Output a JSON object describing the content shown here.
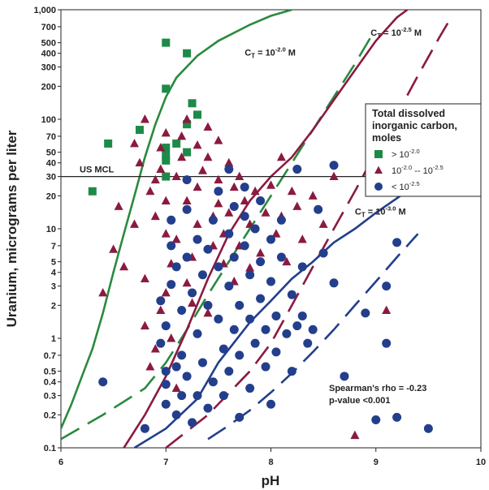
{
  "chart_data": {
    "type": "scatter",
    "xlabel": "pH",
    "ylabel": "Uranium, micrograms per liter",
    "xlim": [
      6,
      10
    ],
    "ylim": [
      0.1,
      1000
    ],
    "yscale": "log",
    "x_ticks": [
      "6",
      "7",
      "8",
      "9",
      "10"
    ],
    "y_ticks": [
      {
        "v": 1000,
        "label": "1,000"
      },
      {
        "v": 700,
        "label": "700"
      },
      {
        "v": 500,
        "label": "500"
      },
      {
        "v": 400,
        "label": "400"
      },
      {
        "v": 300,
        "label": "300"
      },
      {
        "v": 200,
        "label": "200"
      },
      {
        "v": 100,
        "label": "100"
      },
      {
        "v": 70,
        "label": "70"
      },
      {
        "v": 50,
        "label": "50"
      },
      {
        "v": 40,
        "label": "40"
      },
      {
        "v": 30,
        "label": "30"
      },
      {
        "v": 20,
        "label": "20"
      },
      {
        "v": 10,
        "label": "10"
      },
      {
        "v": 7,
        "label": "7"
      },
      {
        "v": 5,
        "label": "5"
      },
      {
        "v": 4,
        "label": "4"
      },
      {
        "v": 3,
        "label": "3"
      },
      {
        "v": 2,
        "label": "2"
      },
      {
        "v": 1,
        "label": "1"
      },
      {
        "v": 0.7,
        "label": "0.7"
      },
      {
        "v": 0.5,
        "label": "0.5"
      },
      {
        "v": 0.4,
        "label": "0.4"
      },
      {
        "v": 0.3,
        "label": "0.3"
      },
      {
        "v": 0.2,
        "label": "0.2"
      },
      {
        "v": 0.1,
        "label": "0.1"
      }
    ],
    "mcl": {
      "value": 30,
      "label": "US MCL"
    },
    "legend": {
      "title_lines": [
        "Total dissolved",
        "inorganic carbon,",
        "moles"
      ],
      "entries": [
        {
          "marker": "square",
          "color": "#1e8a4a",
          "text": "> 10",
          "sup": "-2.0"
        },
        {
          "marker": "triangle",
          "color": "#8b1a3f",
          "text": "10",
          "sup": "-2.0",
          "text2": " -- 10",
          "sup2": "-2.5"
        },
        {
          "marker": "circle",
          "color": "#233f8c",
          "text": "< 10",
          "sup": "-2.5"
        }
      ]
    },
    "curve_labels": [
      {
        "base": "C",
        "sub": "T",
        "eq": " = 10",
        "sup": "-2.0",
        "unit": " M",
        "x": 7.75,
        "y": 380
      },
      {
        "base": "C",
        "sub": "T",
        "eq": " = 10",
        "sup": "-2.5",
        "unit": " M",
        "x": 8.95,
        "y": 580
      },
      {
        "base": "C",
        "sub": "T",
        "eq": " = 10",
        "sup": "-3.0",
        "unit": " M",
        "x": 8.8,
        "y": 13.5
      }
    ],
    "stats": {
      "line1": "Spearman's rho = -0.23",
      "line2": "p-value <0.001"
    },
    "curves": [
      {
        "name": "green-solid",
        "color": "#2a8a3e",
        "dash": false,
        "points": [
          [
            6.0,
            0.15
          ],
          [
            6.1,
            0.25
          ],
          [
            6.2,
            0.45
          ],
          [
            6.3,
            0.8
          ],
          [
            6.4,
            1.7
          ],
          [
            6.5,
            4
          ],
          [
            6.6,
            9
          ],
          [
            6.7,
            20
          ],
          [
            6.8,
            45
          ],
          [
            6.9,
            90
          ],
          [
            7.0,
            160
          ],
          [
            7.1,
            240
          ],
          [
            7.3,
            380
          ],
          [
            7.5,
            520
          ],
          [
            7.8,
            730
          ],
          [
            8.0,
            880
          ],
          [
            8.2,
            1000
          ]
        ]
      },
      {
        "name": "green-dashed",
        "color": "#2a8a3e",
        "dash": true,
        "points": [
          [
            6.0,
            0.12
          ],
          [
            6.4,
            0.2
          ],
          [
            6.8,
            0.35
          ],
          [
            7.0,
            0.6
          ],
          [
            7.2,
            1.2
          ],
          [
            7.4,
            2.5
          ],
          [
            7.6,
            5
          ],
          [
            7.8,
            10
          ],
          [
            8.0,
            20
          ],
          [
            8.2,
            40
          ],
          [
            8.4,
            80
          ],
          [
            8.6,
            160
          ],
          [
            8.8,
            320
          ],
          [
            8.95,
            560
          ]
        ]
      },
      {
        "name": "red-solid",
        "color": "#8b1a3f",
        "dash": false,
        "points": [
          [
            6.6,
            0.1
          ],
          [
            6.8,
            0.2
          ],
          [
            7.0,
            0.45
          ],
          [
            7.2,
            1.2
          ],
          [
            7.4,
            3.5
          ],
          [
            7.6,
            9
          ],
          [
            7.8,
            18
          ],
          [
            8.0,
            30
          ],
          [
            8.2,
            45
          ],
          [
            8.4,
            80
          ],
          [
            8.6,
            150
          ],
          [
            8.8,
            280
          ],
          [
            9.0,
            520
          ],
          [
            9.2,
            850
          ],
          [
            9.3,
            1000
          ]
        ]
      },
      {
        "name": "red-dashed",
        "color": "#8b1a3f",
        "dash": true,
        "points": [
          [
            7.0,
            0.1
          ],
          [
            7.4,
            0.2
          ],
          [
            7.8,
            0.5
          ],
          [
            8.0,
            0.9
          ],
          [
            8.2,
            2
          ],
          [
            8.4,
            4.5
          ],
          [
            8.6,
            10
          ],
          [
            8.8,
            22
          ],
          [
            9.0,
            50
          ],
          [
            9.2,
            110
          ],
          [
            9.4,
            250
          ],
          [
            9.6,
            550
          ],
          [
            9.7,
            800
          ]
        ]
      },
      {
        "name": "blue-solid",
        "color": "#233f8c",
        "dash": false,
        "points": [
          [
            6.7,
            0.1
          ],
          [
            7.0,
            0.15
          ],
          [
            7.3,
            0.28
          ],
          [
            7.5,
            0.6
          ],
          [
            7.8,
            1.4
          ],
          [
            8.0,
            2.2
          ],
          [
            8.2,
            3.5
          ],
          [
            8.4,
            5
          ],
          [
            8.6,
            7.5
          ],
          [
            8.8,
            10
          ],
          [
            9.0,
            14
          ],
          [
            9.2,
            19
          ],
          [
            9.4,
            26
          ],
          [
            9.6,
            33
          ]
        ]
      },
      {
        "name": "blue-dashed",
        "color": "#233f8c",
        "dash": true,
        "points": [
          [
            7.4,
            0.12
          ],
          [
            7.6,
            0.16
          ],
          [
            7.8,
            0.22
          ],
          [
            8.0,
            0.32
          ],
          [
            8.2,
            0.48
          ],
          [
            8.4,
            0.75
          ],
          [
            8.6,
            1.2
          ],
          [
            8.8,
            2
          ],
          [
            9.0,
            3.3
          ],
          [
            9.2,
            5.5
          ],
          [
            9.4,
            9
          ]
        ]
      }
    ],
    "series": [
      {
        "name": "> 10-2.0",
        "marker": "square",
        "color": "#1e8a4a",
        "points": [
          [
            6.3,
            22
          ],
          [
            6.45,
            60
          ],
          [
            6.75,
            80
          ],
          [
            7.0,
            500
          ],
          [
            7.0,
            190
          ],
          [
            7.0,
            55
          ],
          [
            7.0,
            47
          ],
          [
            7.0,
            30
          ],
          [
            7.0,
            42
          ],
          [
            7.1,
            60
          ],
          [
            7.2,
            400
          ],
          [
            7.2,
            90
          ],
          [
            7.25,
            140
          ],
          [
            7.3,
            110
          ],
          [
            7.2,
            50
          ]
        ]
      },
      {
        "name": "10-2.0 -- 10-2.5",
        "marker": "triangle",
        "color": "#8b1a3f",
        "points": [
          [
            6.4,
            2.6
          ],
          [
            6.5,
            6.5
          ],
          [
            6.55,
            16
          ],
          [
            6.6,
            4.5
          ],
          [
            6.7,
            60
          ],
          [
            6.7,
            11
          ],
          [
            6.75,
            40
          ],
          [
            6.8,
            1.3
          ],
          [
            6.8,
            3.5
          ],
          [
            6.8,
            100
          ],
          [
            6.85,
            22
          ],
          [
            6.9,
            28
          ],
          [
            6.95,
            35
          ],
          [
            6.9,
            13
          ],
          [
            6.9,
            0.8
          ],
          [
            6.95,
            1.8
          ],
          [
            6.95,
            55
          ],
          [
            7.0,
            75
          ],
          [
            7.0,
            18
          ],
          [
            7.0,
            9
          ],
          [
            7.05,
            1.0
          ],
          [
            7.0,
            2.6
          ],
          [
            7.05,
            4.8
          ],
          [
            7.1,
            8
          ],
          [
            7.1,
            30
          ],
          [
            7.15,
            45
          ],
          [
            7.15,
            70
          ],
          [
            7.2,
            100
          ],
          [
            7.2,
            18
          ],
          [
            7.2,
            3.2
          ],
          [
            7.25,
            2.1
          ],
          [
            7.25,
            5.5
          ],
          [
            7.3,
            11
          ],
          [
            7.3,
            24
          ],
          [
            7.3,
            58
          ],
          [
            7.35,
            34
          ],
          [
            7.4,
            85
          ],
          [
            7.4,
            45
          ],
          [
            7.4,
            1.7
          ],
          [
            7.45,
            13
          ],
          [
            7.45,
            7
          ],
          [
            7.5,
            64
          ],
          [
            7.5,
            28
          ],
          [
            7.5,
            17
          ],
          [
            7.55,
            4.8
          ],
          [
            7.55,
            9
          ],
          [
            7.6,
            40
          ],
          [
            7.6,
            14
          ],
          [
            7.65,
            24
          ],
          [
            7.65,
            3.3
          ],
          [
            7.7,
            30
          ],
          [
            7.7,
            7
          ],
          [
            7.75,
            18
          ],
          [
            7.8,
            11
          ],
          [
            7.8,
            4.4
          ],
          [
            7.85,
            22
          ],
          [
            7.9,
            6
          ],
          [
            7.95,
            14
          ],
          [
            8.0,
            25
          ],
          [
            8.05,
            9
          ],
          [
            8.1,
            45
          ],
          [
            8.1,
            13
          ],
          [
            8.15,
            5
          ],
          [
            8.2,
            22
          ],
          [
            8.25,
            16
          ],
          [
            8.3,
            8
          ],
          [
            8.4,
            20
          ],
          [
            8.5,
            11
          ],
          [
            8.6,
            30
          ],
          [
            8.8,
            0.13
          ],
          [
            9.1,
            1.8
          ],
          [
            6.85,
            0.55
          ],
          [
            7.1,
            0.35
          ]
        ]
      },
      {
        "name": "< 10-2.5",
        "marker": "circle",
        "color": "#233f8c",
        "points": [
          [
            6.4,
            0.4
          ],
          [
            6.8,
            0.15
          ],
          [
            6.95,
            2.2
          ],
          [
            6.95,
            0.9
          ],
          [
            7.0,
            1.3
          ],
          [
            7.0,
            0.5
          ],
          [
            7.0,
            0.38
          ],
          [
            7.0,
            0.25
          ],
          [
            7.05,
            3.1
          ],
          [
            7.05,
            7
          ],
          [
            7.05,
            12
          ],
          [
            7.1,
            0.55
          ],
          [
            7.1,
            0.2
          ],
          [
            7.1,
            4.5
          ],
          [
            7.15,
            0.7
          ],
          [
            7.15,
            0.3
          ],
          [
            7.15,
            1.8
          ],
          [
            7.2,
            5.5
          ],
          [
            7.2,
            15
          ],
          [
            7.2,
            28
          ],
          [
            7.2,
            0.45
          ],
          [
            7.25,
            2.6
          ],
          [
            7.25,
            0.17
          ],
          [
            7.3,
            0.3
          ],
          [
            7.3,
            8
          ],
          [
            7.3,
            1.1
          ],
          [
            7.35,
            3.8
          ],
          [
            7.35,
            0.6
          ],
          [
            7.4,
            6.5
          ],
          [
            7.4,
            2
          ],
          [
            7.4,
            0.23
          ],
          [
            7.45,
            12
          ],
          [
            7.45,
            0.4
          ],
          [
            7.5,
            22
          ],
          [
            7.5,
            4.5
          ],
          [
            7.5,
            1.5
          ],
          [
            7.55,
            0.8
          ],
          [
            7.55,
            0.3
          ],
          [
            7.6,
            9
          ],
          [
            7.6,
            3
          ],
          [
            7.6,
            0.5
          ],
          [
            7.6,
            35
          ],
          [
            7.65,
            16
          ],
          [
            7.65,
            5.5
          ],
          [
            7.65,
            1.2
          ],
          [
            7.7,
            2
          ],
          [
            7.7,
            0.7
          ],
          [
            7.7,
            0.19
          ],
          [
            7.75,
            7
          ],
          [
            7.75,
            13
          ],
          [
            7.75,
            24
          ],
          [
            7.8,
            3.8
          ],
          [
            7.8,
            1.5
          ],
          [
            7.8,
            0.35
          ],
          [
            7.85,
            10
          ],
          [
            7.85,
            0.9
          ],
          [
            7.9,
            5
          ],
          [
            7.9,
            18
          ],
          [
            7.9,
            2.3
          ],
          [
            7.95,
            0.55
          ],
          [
            7.95,
            1.2
          ],
          [
            8.0,
            8
          ],
          [
            8.0,
            3.3
          ],
          [
            8.0,
            0.25
          ],
          [
            8.05,
            1.6
          ],
          [
            8.05,
            0.75
          ],
          [
            8.1,
            5.5
          ],
          [
            8.1,
            12
          ],
          [
            8.15,
            1.1
          ],
          [
            8.2,
            2.5
          ],
          [
            8.2,
            0.5
          ],
          [
            8.25,
            35
          ],
          [
            8.25,
            1.3
          ],
          [
            8.3,
            1.6
          ],
          [
            8.3,
            4.5
          ],
          [
            8.35,
            0.9
          ],
          [
            8.4,
            1.2
          ],
          [
            8.45,
            15
          ],
          [
            8.5,
            6
          ],
          [
            8.6,
            3.2
          ],
          [
            8.6,
            38
          ],
          [
            8.7,
            0.45
          ],
          [
            8.9,
            1.7
          ],
          [
            9.0,
            0.18
          ],
          [
            9.1,
            0.9
          ],
          [
            9.1,
            3
          ],
          [
            9.2,
            7.5
          ],
          [
            9.2,
            0.19
          ],
          [
            9.5,
            0.15
          ]
        ]
      }
    ]
  }
}
